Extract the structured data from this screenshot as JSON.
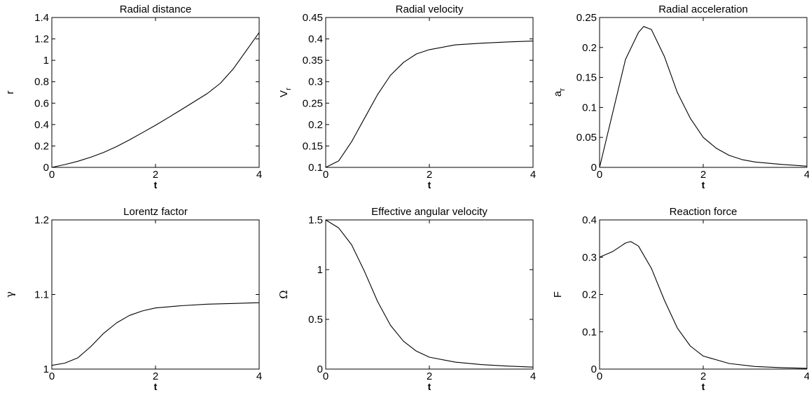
{
  "chart_data": [
    {
      "type": "line",
      "title": "Radial distance",
      "xlabel": "t",
      "ylabel": "r",
      "xlim": [
        0,
        4
      ],
      "ylim": [
        0,
        1.4
      ],
      "xticks": [
        "0",
        "2",
        "4"
      ],
      "yticks": [
        "0",
        "0.2",
        "0.4",
        "0.6",
        "0.8",
        "1",
        "1.2",
        "1.4"
      ],
      "grid": false,
      "series": [
        {
          "x": [
            0,
            0.25,
            0.5,
            0.75,
            1,
            1.25,
            1.5,
            1.75,
            2,
            2.25,
            2.5,
            2.75,
            3,
            3.25,
            3.5,
            3.75,
            4
          ],
          "y": [
            0,
            0.026,
            0.057,
            0.095,
            0.14,
            0.195,
            0.258,
            0.325,
            0.393,
            0.466,
            0.54,
            0.615,
            0.69,
            0.785,
            0.92,
            1.09,
            1.26
          ]
        }
      ]
    },
    {
      "type": "line",
      "title": "Radial velocity",
      "xlabel": "t",
      "ylabel": "V_r",
      "xlim": [
        0,
        4
      ],
      "ylim": [
        0.1,
        0.45
      ],
      "xticks": [
        "0",
        "2",
        "4"
      ],
      "yticks": [
        "0.1",
        "0.15",
        "0.2",
        "0.25",
        "0.3",
        "0.35",
        "0.4",
        "0.45"
      ],
      "grid": false,
      "series": [
        {
          "x": [
            0,
            0.25,
            0.5,
            0.75,
            1,
            1.25,
            1.5,
            1.75,
            2,
            2.5,
            3,
            3.5,
            4
          ],
          "y": [
            0.1,
            0.115,
            0.16,
            0.215,
            0.27,
            0.315,
            0.345,
            0.365,
            0.375,
            0.386,
            0.39,
            0.393,
            0.395
          ]
        }
      ]
    },
    {
      "type": "line",
      "title": "Radial acceleration",
      "xlabel": "t",
      "ylabel": "a_r",
      "xlim": [
        0,
        4
      ],
      "ylim": [
        0,
        0.25
      ],
      "xticks": [
        "0",
        "2",
        "4"
      ],
      "yticks": [
        "0",
        "0.05",
        "0.1",
        "0.15",
        "0.2",
        "0.25"
      ],
      "grid": false,
      "series": [
        {
          "x": [
            0,
            0.25,
            0.5,
            0.75,
            0.85,
            1,
            1.25,
            1.5,
            1.75,
            2,
            2.25,
            2.5,
            2.75,
            3,
            3.5,
            4
          ],
          "y": [
            0,
            0.09,
            0.18,
            0.225,
            0.235,
            0.23,
            0.185,
            0.125,
            0.082,
            0.05,
            0.032,
            0.02,
            0.013,
            0.009,
            0.005,
            0.002
          ]
        }
      ]
    },
    {
      "type": "line",
      "title": "Lorentz factor",
      "xlabel": "t",
      "ylabel": "γ",
      "xlim": [
        0,
        4
      ],
      "ylim": [
        1,
        1.2
      ],
      "xticks": [
        "0",
        "2",
        "4"
      ],
      "yticks": [
        "1",
        "1.1",
        "1.2"
      ],
      "grid": false,
      "series": [
        {
          "x": [
            0,
            0.25,
            0.5,
            0.75,
            1,
            1.25,
            1.5,
            1.75,
            2,
            2.5,
            3,
            3.5,
            4
          ],
          "y": [
            1.005,
            1.008,
            1.015,
            1.03,
            1.048,
            1.062,
            1.072,
            1.078,
            1.082,
            1.085,
            1.087,
            1.088,
            1.089
          ]
        }
      ]
    },
    {
      "type": "line",
      "title": "Effective angular velocity",
      "xlabel": "t",
      "ylabel": "Ω",
      "xlim": [
        0,
        4
      ],
      "ylim": [
        0,
        1.5
      ],
      "xticks": [
        "0",
        "2",
        "4"
      ],
      "yticks": [
        "0",
        "0.5",
        "1",
        "1.5"
      ],
      "grid": false,
      "series": [
        {
          "x": [
            0,
            0.25,
            0.5,
            0.75,
            1,
            1.25,
            1.5,
            1.75,
            2,
            2.5,
            3,
            3.5,
            4
          ],
          "y": [
            1.5,
            1.42,
            1.25,
            0.98,
            0.68,
            0.44,
            0.28,
            0.18,
            0.12,
            0.07,
            0.045,
            0.03,
            0.02
          ]
        }
      ]
    },
    {
      "type": "line",
      "title": "Reaction force",
      "xlabel": "t",
      "ylabel": "F",
      "xlim": [
        0,
        4
      ],
      "ylim": [
        0,
        0.4
      ],
      "xticks": [
        "0",
        "2",
        "4"
      ],
      "yticks": [
        "0",
        "0.1",
        "0.2",
        "0.3",
        "0.4"
      ],
      "grid": false,
      "series": [
        {
          "x": [
            0,
            0.25,
            0.5,
            0.6,
            0.75,
            1,
            1.25,
            1.5,
            1.75,
            2,
            2.5,
            3,
            3.5,
            4
          ],
          "y": [
            0.3,
            0.315,
            0.338,
            0.342,
            0.33,
            0.27,
            0.185,
            0.11,
            0.062,
            0.035,
            0.015,
            0.007,
            0.004,
            0.002
          ]
        }
      ]
    }
  ]
}
